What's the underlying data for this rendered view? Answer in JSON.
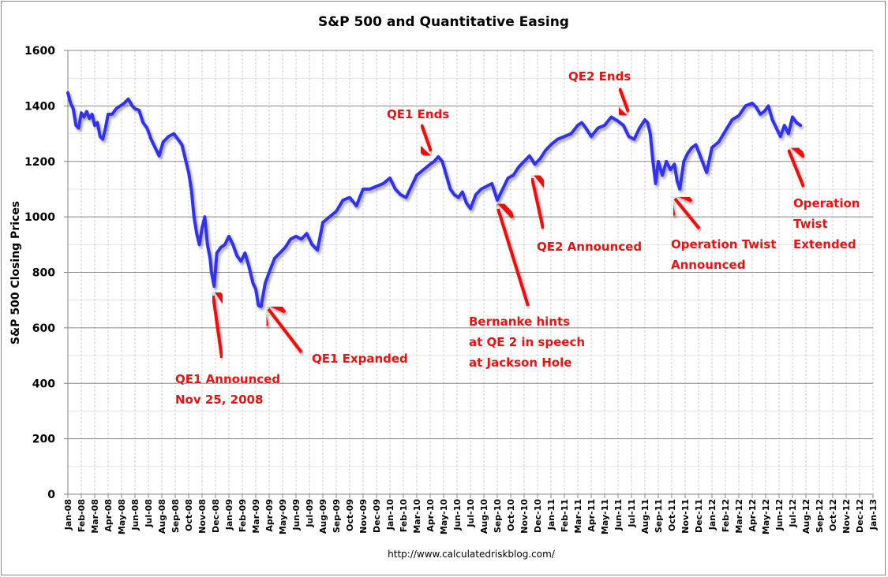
{
  "chart_data": {
    "type": "line",
    "title": "S&P 500 and Quantitative Easing",
    "xlabel": "",
    "ylabel": "S&P 500 Closing Prices",
    "ylim": [
      0,
      1600
    ],
    "yticks": [
      0,
      200,
      400,
      600,
      800,
      1000,
      1200,
      1400,
      1600
    ],
    "ytick_labels": [
      "0",
      "200",
      "400",
      "600",
      "800",
      "1000",
      "1200",
      "1400",
      "1600"
    ],
    "xlim_months": [
      0,
      60
    ],
    "xtick_labels": [
      "Jan-08",
      "Feb-08",
      "Mar-08",
      "Apr-08",
      "May-08",
      "Jun-08",
      "Jul-08",
      "Aug-08",
      "Sep-08",
      "Oct-08",
      "Nov-08",
      "Dec-08",
      "Jan-09",
      "Feb-09",
      "Mar-09",
      "Apr-09",
      "May-09",
      "Jun-09",
      "Jul-09",
      "Aug-09",
      "Sep-09",
      "Oct-09",
      "Nov-09",
      "Dec-09",
      "Jan-10",
      "Feb-10",
      "Mar-10",
      "Apr-10",
      "May-10",
      "Jun-10",
      "Jul-10",
      "Aug-10",
      "Sep-10",
      "Oct-10",
      "Nov-10",
      "Dec-10",
      "Jan-11",
      "Feb-11",
      "Mar-11",
      "Apr-11",
      "May-11",
      "Jun-11",
      "Jul-11",
      "Aug-11",
      "Sep-11",
      "Oct-11",
      "Nov-11",
      "Dec-11",
      "Jan-12",
      "Feb-12",
      "Mar-12",
      "Apr-12",
      "May-12",
      "Jun-12",
      "Jul-12",
      "Aug-12",
      "Sep-12",
      "Oct-12",
      "Nov-12",
      "Dec-12",
      "Jan-13"
    ],
    "grid": true,
    "legend": "none",
    "series": [
      {
        "name": "S&P 500",
        "color": "#3333ee",
        "x_months": [
          0.0,
          0.2,
          0.4,
          0.6,
          0.8,
          1.0,
          1.2,
          1.4,
          1.6,
          1.8,
          2.0,
          2.2,
          2.4,
          2.6,
          2.8,
          3.0,
          3.3,
          3.6,
          3.9,
          4.2,
          4.5,
          4.8,
          5.0,
          5.3,
          5.6,
          5.9,
          6.2,
          6.5,
          6.8,
          7.1,
          7.5,
          7.9,
          8.2,
          8.5,
          8.8,
          9.0,
          9.2,
          9.4,
          9.6,
          9.8,
          10.0,
          10.2,
          10.4,
          10.6,
          10.7,
          10.9,
          11.1,
          11.4,
          11.7,
          12.0,
          12.3,
          12.6,
          12.9,
          13.2,
          13.5,
          13.8,
          14.0,
          14.2,
          14.4,
          14.7,
          15.0,
          15.4,
          15.8,
          16.2,
          16.6,
          17.0,
          17.4,
          17.8,
          18.2,
          18.6,
          19.0,
          19.5,
          20.0,
          20.5,
          21.0,
          21.5,
          22.0,
          22.5,
          23.0,
          23.5,
          24.0,
          24.4,
          24.8,
          25.2,
          25.6,
          26.0,
          26.5,
          27.0,
          27.3,
          27.6,
          27.9,
          28.2,
          28.5,
          28.8,
          29.1,
          29.4,
          29.7,
          30.0,
          30.4,
          30.8,
          31.2,
          31.6,
          32.0,
          32.4,
          32.8,
          33.2,
          33.6,
          34.0,
          34.4,
          34.8,
          35.2,
          35.6,
          36.0,
          36.5,
          37.0,
          37.5,
          38.0,
          38.3,
          38.6,
          39.0,
          39.5,
          40.0,
          40.5,
          41.0,
          41.4,
          41.8,
          42.2,
          42.6,
          43.0,
          43.2,
          43.4,
          43.6,
          43.8,
          44.0,
          44.3,
          44.6,
          44.9,
          45.2,
          45.4,
          45.6,
          45.9,
          46.2,
          46.5,
          46.8,
          47.2,
          47.6,
          48.0,
          48.5,
          49.0,
          49.5,
          50.0,
          50.5,
          51.0,
          51.3,
          51.6,
          51.9,
          52.2,
          52.5,
          52.8,
          53.1,
          53.4,
          53.7,
          54.0,
          54.3,
          54.6,
          54.9
        ],
        "values": [
          1447,
          1410,
          1390,
          1330,
          1320,
          1375,
          1360,
          1380,
          1355,
          1370,
          1330,
          1340,
          1290,
          1280,
          1320,
          1370,
          1370,
          1390,
          1400,
          1410,
          1425,
          1400,
          1390,
          1385,
          1340,
          1320,
          1280,
          1250,
          1220,
          1270,
          1290,
          1300,
          1280,
          1260,
          1200,
          1160,
          1100,
          1000,
          940,
          900,
          960,
          1000,
          900,
          850,
          800,
          750,
          870,
          890,
          900,
          930,
          900,
          860,
          840,
          870,
          820,
          760,
          740,
          680,
          677,
          760,
          800,
          850,
          870,
          890,
          920,
          930,
          920,
          940,
          900,
          880,
          980,
          1000,
          1020,
          1060,
          1070,
          1040,
          1100,
          1100,
          1110,
          1120,
          1140,
          1100,
          1080,
          1070,
          1110,
          1150,
          1170,
          1190,
          1200,
          1217,
          1200,
          1150,
          1100,
          1080,
          1070,
          1090,
          1050,
          1030,
          1080,
          1100,
          1110,
          1120,
          1060,
          1100,
          1140,
          1150,
          1180,
          1200,
          1220,
          1190,
          1210,
          1240,
          1260,
          1280,
          1290,
          1300,
          1330,
          1340,
          1320,
          1290,
          1320,
          1330,
          1360,
          1345,
          1330,
          1290,
          1280,
          1320,
          1350,
          1340,
          1300,
          1200,
          1120,
          1200,
          1150,
          1200,
          1170,
          1190,
          1130,
          1100,
          1200,
          1230,
          1250,
          1260,
          1210,
          1160,
          1250,
          1270,
          1310,
          1350,
          1365,
          1400,
          1410,
          1395,
          1370,
          1380,
          1400,
          1350,
          1320,
          1290,
          1330,
          1300,
          1360,
          1340,
          1330
        ]
      }
    ],
    "annotations": [
      {
        "text": [
          "QE1 Announced",
          "Nov 25, 2008"
        ],
        "points_to_month": 10.8,
        "points_to_value": 750
      },
      {
        "text": [
          "QE1 Expanded"
        ],
        "points_to_month": 14.5,
        "points_to_value": 677
      },
      {
        "text": [
          "QE1 Ends"
        ],
        "points_to_month": 27.3,
        "points_to_value": 1210
      },
      {
        "text": [
          "Bernanke hints",
          "at QE 2 in speech",
          "at Jackson Hole"
        ],
        "points_to_month": 32.0,
        "points_to_value": 1050
      },
      {
        "text": [
          "QE2 Announced"
        ],
        "points_to_month": 34.9,
        "points_to_value": 1190
      },
      {
        "text": [
          "QE2 Ends"
        ],
        "points_to_month": 41.8,
        "points_to_value": 1340
      },
      {
        "text": [
          "Operation  Twist",
          "Announced"
        ],
        "points_to_month": 44.8,
        "points_to_value": 1100
      },
      {
        "text": [
          "Operation",
          "Twist",
          "Extended"
        ],
        "points_to_month": 54.0,
        "points_to_value": 1270
      }
    ],
    "source": "http://www.calculatedriskblog.com/"
  }
}
